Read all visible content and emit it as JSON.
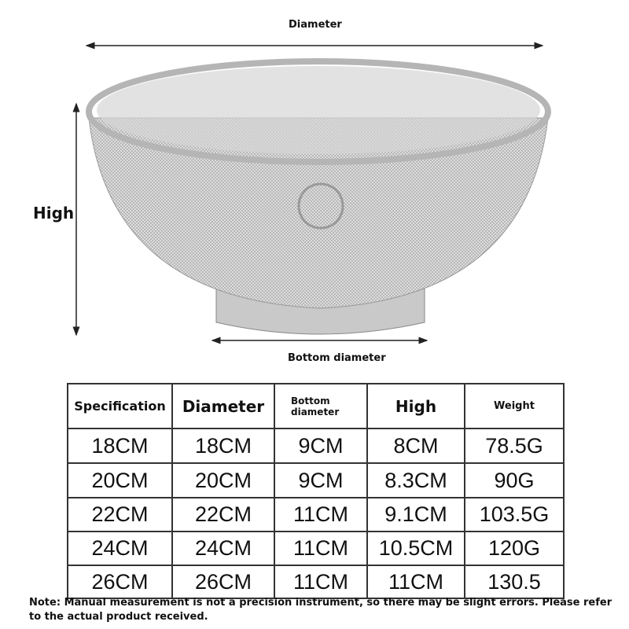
{
  "labels": {
    "diameter": "Diameter",
    "high": "High",
    "bottom_diameter": "Bottom diameter"
  },
  "table": {
    "headers": [
      "Specification",
      "Diameter",
      "Bottom diameter",
      "High",
      "Weight"
    ],
    "rows": [
      [
        "18CM",
        "18CM",
        "9CM",
        "8CM",
        "78.5G"
      ],
      [
        "20CM",
        "20CM",
        "9CM",
        "8.3CM",
        "90G"
      ],
      [
        "22CM",
        "22CM",
        "11CM",
        "9.1CM",
        "103.5G"
      ],
      [
        "24CM",
        "24CM",
        "11CM",
        "10.5CM",
        "120G"
      ],
      [
        "26CM",
        "26CM",
        "11CM",
        "11CM",
        "130.5"
      ]
    ]
  },
  "note": "Note: Manual measurement is not a precision instrument, so there may be slight errors. Please refer to the actual product received."
}
